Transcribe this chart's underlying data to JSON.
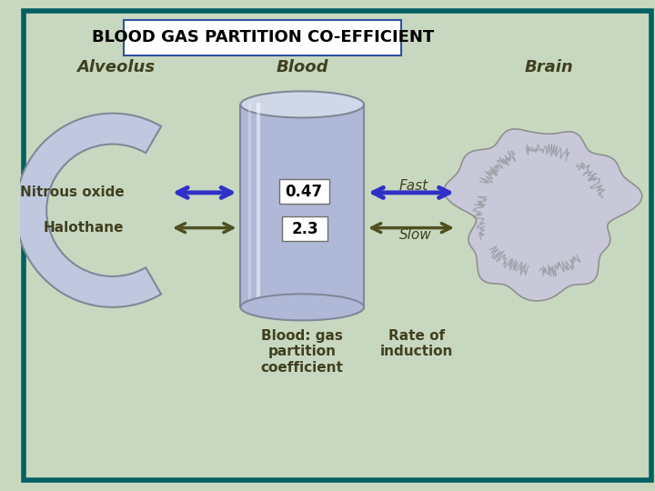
{
  "title": "BLOOD GAS PARTITION CO-EFFICIENT",
  "title_fontsize": 13,
  "bg_color": "#c8d8c0",
  "border_color": "#006060",
  "label_alveolus": "Alveolus",
  "label_blood": "Blood",
  "label_brain": "Brain",
  "label_nitrous": "Nitrous oxide",
  "label_halothane": "Halothane",
  "val_nitrous": "0.47",
  "val_halothane": "2.3",
  "label_fast": "Fast",
  "label_slow": "Slow",
  "label_blood_gas": "Blood: gas\npartition\ncoefficient",
  "label_rate": "Rate of\ninduction",
  "arrow_color_nitrous": "#3030c8",
  "arrow_color_halothane": "#505020",
  "cylinder_color": "#b0b8d8",
  "cylinder_edge": "#808898",
  "alveolus_color": "#c0c8e0",
  "brain_color": "#c8c8d8",
  "text_color_dark": "#404020",
  "title_box_edge": "#3050a0"
}
